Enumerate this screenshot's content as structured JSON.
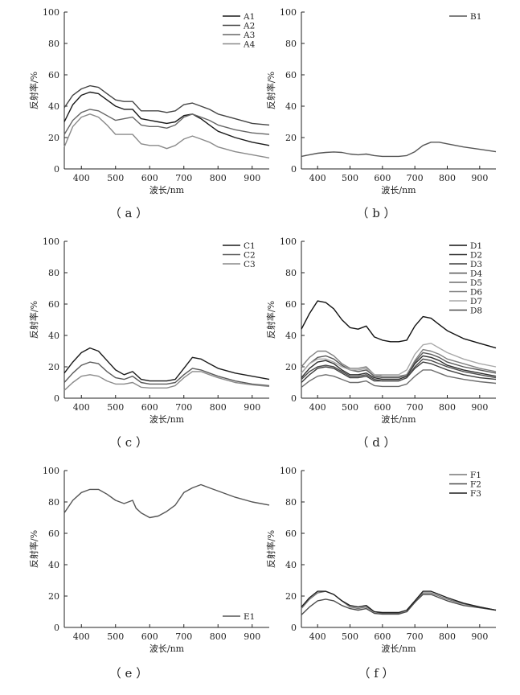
{
  "figure": {
    "captions": [
      "（ a ）",
      "（ b ）",
      "（ c ）",
      "（ d ）",
      "（ e ）",
      "（ f ）"
    ]
  },
  "chart_data": [
    {
      "type": "line",
      "panel": "a",
      "caption": "（ a ）",
      "xlabel": "波长/nm",
      "ylabel": "反射率/%",
      "xlim": [
        350,
        950
      ],
      "ylim": [
        0,
        100
      ],
      "xticks": [
        400,
        500,
        600,
        700,
        800,
        900
      ],
      "yticks": [
        0,
        20,
        40,
        60,
        80,
        100
      ],
      "legend_position": "top-right",
      "grid": false,
      "x": [
        350,
        375,
        400,
        425,
        450,
        475,
        500,
        525,
        550,
        575,
        600,
        625,
        650,
        675,
        700,
        725,
        750,
        775,
        800,
        850,
        900,
        950
      ],
      "series": [
        {
          "name": "A1",
          "color": "#1a1a1a",
          "values": [
            30,
            41,
            47,
            49,
            48,
            44,
            40,
            38,
            38,
            32,
            31,
            30,
            29,
            30,
            34,
            35,
            32,
            28,
            24,
            20,
            17,
            15
          ]
        },
        {
          "name": "A2",
          "color": "#444444",
          "values": [
            39,
            47,
            51,
            53,
            52,
            48,
            44,
            43,
            43,
            37,
            37,
            37,
            36,
            37,
            41,
            42,
            40,
            38,
            35,
            32,
            29,
            28
          ]
        },
        {
          "name": "A3",
          "color": "#666666",
          "values": [
            22,
            31,
            36,
            38,
            37,
            34,
            31,
            32,
            33,
            28,
            27,
            27,
            26,
            28,
            33,
            35,
            33,
            31,
            28,
            25,
            23,
            22
          ]
        },
        {
          "name": "A4",
          "color": "#8a8a8a",
          "values": [
            14,
            27,
            33,
            35,
            33,
            28,
            22,
            22,
            22,
            16,
            15,
            15,
            13,
            15,
            19,
            21,
            19,
            17,
            14,
            11,
            9,
            7
          ]
        }
      ]
    },
    {
      "type": "line",
      "panel": "b",
      "caption": "（ b ）",
      "xlabel": "波长/nm",
      "ylabel": "反射率/%",
      "xlim": [
        350,
        950
      ],
      "ylim": [
        0,
        100
      ],
      "xticks": [
        400,
        500,
        600,
        700,
        800,
        900
      ],
      "yticks": [
        0,
        20,
        40,
        60,
        80,
        100
      ],
      "legend_position": "top-right",
      "grid": false,
      "x": [
        350,
        375,
        400,
        425,
        450,
        475,
        500,
        525,
        550,
        575,
        600,
        625,
        650,
        675,
        700,
        725,
        750,
        775,
        800,
        850,
        900,
        950
      ],
      "series": [
        {
          "name": "B1",
          "color": "#555555",
          "values": [
            8,
            9,
            10,
            10.5,
            10.8,
            10.5,
            9.5,
            9,
            9.5,
            8.5,
            8,
            8,
            8,
            8.5,
            11,
            15,
            17,
            17,
            16,
            14,
            12.5,
            11
          ]
        }
      ]
    },
    {
      "type": "line",
      "panel": "c",
      "caption": "（ c ）",
      "xlabel": "波长/nm",
      "ylabel": "反射率/%",
      "xlim": [
        350,
        950
      ],
      "ylim": [
        0,
        100
      ],
      "xticks": [
        400,
        500,
        600,
        700,
        800,
        900
      ],
      "yticks": [
        0,
        20,
        40,
        60,
        80,
        100
      ],
      "legend_position": "top-right",
      "grid": false,
      "x": [
        350,
        375,
        400,
        425,
        450,
        475,
        500,
        525,
        550,
        575,
        600,
        625,
        650,
        675,
        700,
        725,
        750,
        775,
        800,
        850,
        900,
        950
      ],
      "series": [
        {
          "name": "C1",
          "color": "#1a1a1a",
          "values": [
            16,
            23,
            29,
            32,
            30,
            24,
            18,
            15,
            17,
            12,
            11,
            11,
            11,
            12,
            19,
            26,
            25,
            22,
            19,
            16,
            14,
            12
          ]
        },
        {
          "name": "C2",
          "color": "#5a5a5a",
          "values": [
            10,
            16,
            21,
            23,
            22,
            17,
            13,
            12,
            14,
            10,
            9,
            9,
            9,
            10,
            15,
            19,
            18,
            16,
            14,
            11,
            9,
            8
          ]
        },
        {
          "name": "C3",
          "color": "#8a8a8a",
          "values": [
            5,
            10,
            14,
            15,
            14,
            11,
            9,
            9,
            10,
            7,
            6.5,
            6.5,
            6.5,
            8,
            13,
            17,
            17,
            15,
            13,
            10,
            8.5,
            7.5
          ]
        }
      ]
    },
    {
      "type": "line",
      "panel": "d",
      "caption": "（ d ）",
      "xlabel": "波长/nm",
      "ylabel": "反射率/%",
      "xlim": [
        350,
        950
      ],
      "ylim": [
        0,
        100
      ],
      "xticks": [
        400,
        500,
        600,
        700,
        800,
        900
      ],
      "yticks": [
        0,
        20,
        40,
        60,
        80,
        100
      ],
      "legend_position": "top-right",
      "grid": false,
      "x": [
        350,
        375,
        400,
        425,
        450,
        475,
        500,
        525,
        550,
        575,
        600,
        625,
        650,
        675,
        700,
        725,
        750,
        775,
        800,
        850,
        900,
        950
      ],
      "series": [
        {
          "name": "D1",
          "color": "#111111",
          "values": [
            44,
            54,
            62,
            61,
            57,
            50,
            45,
            44,
            46,
            39,
            37,
            36,
            36,
            37,
            46,
            52,
            51,
            47,
            43,
            38,
            35,
            32
          ]
        },
        {
          "name": "D2",
          "color": "#2e2e2e",
          "values": [
            13,
            19,
            23,
            24,
            22,
            18,
            15,
            15,
            16,
            13,
            12,
            12,
            12,
            14,
            22,
            27,
            26,
            24,
            21,
            18,
            16,
            14
          ]
        },
        {
          "name": "D3",
          "color": "#3f3f3f",
          "values": [
            10,
            15,
            19,
            20,
            19,
            16,
            13,
            13,
            14,
            11,
            11,
            11,
            11,
            13,
            19,
            23,
            22,
            20,
            18,
            15,
            13,
            12
          ]
        },
        {
          "name": "D4",
          "color": "#575757",
          "values": [
            16,
            22,
            26,
            27,
            25,
            21,
            18,
            17,
            18,
            14,
            13,
            13,
            13,
            15,
            23,
            29,
            28,
            26,
            23,
            20,
            18,
            16
          ]
        },
        {
          "name": "D5",
          "color": "#6d6d6d",
          "values": [
            7,
            11,
            14,
            15,
            14,
            12,
            10,
            10,
            11,
            8,
            7.5,
            7.5,
            7.5,
            9,
            14,
            18,
            18,
            16,
            14,
            12,
            10.5,
            9.5
          ]
        },
        {
          "name": "D6",
          "color": "#808080",
          "values": [
            20,
            26,
            30,
            30,
            27,
            22,
            19,
            19,
            20,
            15,
            14,
            14,
            14,
            15,
            24,
            31,
            30,
            28,
            25,
            22,
            19,
            17
          ]
        },
        {
          "name": "D7",
          "color": "#a8a8a8",
          "values": [
            16,
            22,
            25,
            25,
            23,
            20,
            18,
            18,
            19,
            15,
            15,
            15,
            15,
            18,
            28,
            34,
            35,
            32,
            29,
            25,
            22,
            20
          ]
        },
        {
          "name": "D8",
          "color": "#4a4a4a",
          "values": [
            12,
            17,
            20,
            21,
            20,
            17,
            14,
            14,
            15,
            12,
            11,
            11,
            11,
            13,
            20,
            25,
            24,
            22,
            20,
            17,
            15,
            13
          ]
        }
      ]
    },
    {
      "type": "line",
      "panel": "e",
      "caption": "（ e ）",
      "xlabel": "波长/nm",
      "ylabel": "反射率/%",
      "xlim": [
        350,
        950
      ],
      "ylim": [
        0,
        100
      ],
      "xticks": [
        400,
        500,
        600,
        700,
        800,
        900
      ],
      "yticks": [
        0,
        20,
        40,
        60,
        80,
        100
      ],
      "legend_position": "bottom-right",
      "grid": false,
      "x": [
        350,
        375,
        400,
        425,
        450,
        475,
        500,
        525,
        550,
        560,
        575,
        600,
        625,
        650,
        675,
        700,
        725,
        750,
        775,
        800,
        850,
        900,
        950
      ],
      "series": [
        {
          "name": "E1",
          "color": "#555555",
          "values": [
            73,
            81,
            86,
            88,
            88,
            85,
            81,
            79,
            81,
            76,
            73,
            70,
            71,
            74,
            78,
            86,
            89,
            91,
            89,
            87,
            83,
            80,
            78
          ]
        }
      ]
    },
    {
      "type": "line",
      "panel": "f",
      "caption": "（ f ）",
      "xlabel": "波长/nm",
      "ylabel": "反射率/%",
      "xlim": [
        350,
        950
      ],
      "ylim": [
        0,
        100
      ],
      "xticks": [
        400,
        500,
        600,
        700,
        800,
        900
      ],
      "yticks": [
        0,
        20,
        40,
        60,
        80,
        100
      ],
      "legend_position": "top-right",
      "grid": false,
      "x": [
        350,
        375,
        400,
        425,
        450,
        475,
        500,
        525,
        550,
        575,
        600,
        625,
        650,
        675,
        700,
        725,
        750,
        775,
        800,
        850,
        900,
        950
      ],
      "series": [
        {
          "name": "F1",
          "color": "#777777",
          "values": [
            12,
            18,
            22,
            23,
            21,
            17,
            13,
            12,
            13,
            10,
            9,
            9,
            9,
            10,
            16,
            22,
            22,
            20,
            18,
            15,
            13,
            11
          ]
        },
        {
          "name": "F2",
          "color": "#4d4d4d",
          "values": [
            8,
            13,
            17,
            18,
            17,
            14,
            12,
            11,
            12,
            9,
            8.5,
            8.5,
            8.5,
            10,
            16,
            21,
            21,
            19,
            17,
            14,
            12.5,
            11
          ]
        },
        {
          "name": "F3",
          "color": "#1f1f1f",
          "values": [
            13,
            19,
            23,
            23,
            21,
            17,
            14,
            13,
            14,
            10,
            9.5,
            9.5,
            9.5,
            11,
            17,
            23,
            23,
            21,
            19,
            15.5,
            13,
            11
          ]
        }
      ]
    }
  ]
}
